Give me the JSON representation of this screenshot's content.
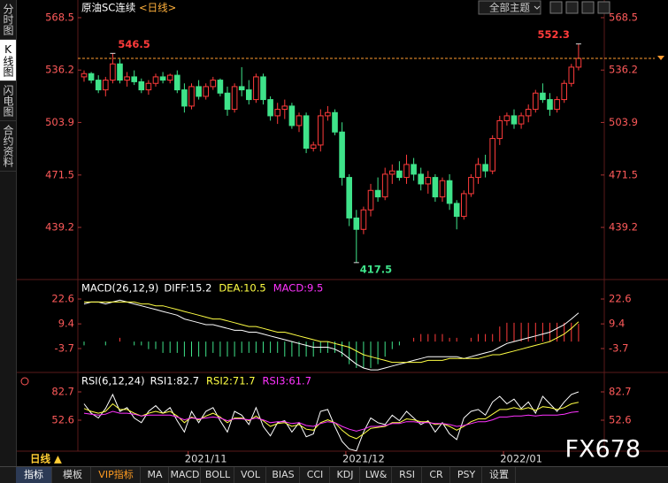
{
  "header": {
    "title": "原油SC连续",
    "period": "<日线>",
    "theme_button": "全部主题"
  },
  "sidebar": [
    "分时图",
    "K线图",
    "闪电图",
    "合约资料"
  ],
  "period_label": "日线 ▲",
  "toolbar": [
    "指标",
    "模板",
    "VIP指标",
    "MA",
    "MACD",
    "BOLL",
    "VOL",
    "BIAS",
    "CCI",
    "KDJ",
    "LW&",
    "RSI",
    "CR",
    "PSY",
    "设置"
  ],
  "watermark": "FX678",
  "chart_data": [
    {
      "type": "candlestick",
      "up_color": "#ff3b3b",
      "down_color": "#3fe38a",
      "ylim": [
        407.6,
        579.4
      ],
      "yticks": [
        439.2,
        471.5,
        503.9,
        536.2,
        568.5
      ],
      "ohlc": [
        [
          532,
          536,
          529,
          534
        ],
        [
          534,
          535,
          528,
          530
        ],
        [
          530,
          533,
          522,
          524
        ],
        [
          524,
          532,
          520,
          530
        ],
        [
          530,
          546.5,
          528,
          540
        ],
        [
          540,
          543,
          528,
          530
        ],
        [
          530,
          535,
          526,
          532
        ],
        [
          532,
          536,
          527,
          529
        ],
        [
          529,
          531,
          522,
          524
        ],
        [
          524,
          530,
          521,
          528
        ],
        [
          528,
          534,
          526,
          532
        ],
        [
          532,
          535,
          528,
          530
        ],
        [
          530,
          534,
          528,
          533
        ],
        [
          533,
          536,
          522,
          524
        ],
        [
          524,
          528,
          510,
          514
        ],
        [
          514,
          528,
          512,
          526
        ],
        [
          526,
          530,
          518,
          520
        ],
        [
          520,
          528,
          518,
          526
        ],
        [
          526,
          532,
          524,
          530
        ],
        [
          530,
          531,
          520,
          522
        ],
        [
          522,
          526,
          508,
          512
        ],
        [
          512,
          528,
          510,
          526
        ],
        [
          526,
          538,
          520,
          524
        ],
        [
          524,
          530,
          515,
          518
        ],
        [
          518,
          534,
          516,
          532
        ],
        [
          532,
          534,
          515,
          518
        ],
        [
          518,
          520,
          505,
          508
        ],
        [
          508,
          516,
          503,
          512
        ],
        [
          512,
          518,
          506,
          514
        ],
        [
          514,
          516,
          500,
          502
        ],
        [
          502,
          510,
          498,
          508
        ],
        [
          508,
          510,
          485,
          488
        ],
        [
          488,
          492,
          486,
          490
        ],
        [
          490,
          512,
          486,
          508
        ],
        [
          508,
          514,
          505,
          510
        ],
        [
          510,
          512,
          496,
          498
        ],
        [
          498,
          504,
          465,
          470
        ],
        [
          470,
          472,
          440,
          445
        ],
        [
          445,
          450,
          417.5,
          438
        ],
        [
          438,
          452,
          435,
          450
        ],
        [
          450,
          466,
          446,
          462
        ],
        [
          462,
          470,
          455,
          458
        ],
        [
          458,
          476,
          456,
          472
        ],
        [
          472,
          478,
          466,
          474
        ],
        [
          474,
          480,
          468,
          470
        ],
        [
          470,
          484,
          466,
          478
        ],
        [
          478,
          482,
          468,
          472
        ],
        [
          472,
          476,
          462,
          466
        ],
        [
          466,
          474,
          460,
          470
        ],
        [
          470,
          472,
          455,
          458
        ],
        [
          458,
          470,
          455,
          468
        ],
        [
          468,
          472,
          450,
          454
        ],
        [
          454,
          456,
          438,
          446
        ],
        [
          446,
          462,
          444,
          460
        ],
        [
          460,
          472,
          458,
          470
        ],
        [
          470,
          482,
          466,
          478
        ],
        [
          478,
          484,
          470,
          474
        ],
        [
          474,
          496,
          472,
          494
        ],
        [
          494,
          508,
          490,
          505
        ],
        [
          505,
          510,
          502,
          508
        ],
        [
          508,
          512,
          500,
          503
        ],
        [
          503,
          510,
          500,
          508
        ],
        [
          508,
          515,
          504,
          512
        ],
        [
          512,
          524,
          510,
          522
        ],
        [
          522,
          528,
          516,
          518
        ],
        [
          518,
          522,
          508,
          512
        ],
        [
          512,
          520,
          510,
          518
        ],
        [
          518,
          530,
          516,
          528
        ],
        [
          528,
          540,
          526,
          538
        ],
        [
          538,
          552.3,
          536,
          543.4
        ]
      ]
    },
    {
      "type": "macd",
      "title": "MACD(26,12,9)",
      "ylim": [
        -15.9,
        32.0
      ],
      "yticks": [
        -3.7,
        9.4,
        22.6
      ],
      "up_color": "#ff3b3b",
      "down_color": "#3fe38a",
      "hist_name": "MACD:9.5",
      "hist_label_color": "#ff33ff",
      "hist": [
        -2,
        0,
        0,
        -2,
        0,
        2,
        0,
        -2,
        -2,
        -4,
        -4,
        -6,
        -6,
        -6,
        -8,
        -8,
        -8,
        -8,
        -6,
        -8,
        -8,
        -8,
        -6,
        -6,
        -6,
        -6,
        -6,
        -6,
        -8,
        -8,
        -8,
        -8,
        -8,
        -6,
        -6,
        -6,
        -8,
        -12,
        -14,
        -14,
        -14,
        -12,
        -8,
        -4,
        -2,
        0,
        2,
        4,
        4,
        4,
        4,
        2,
        2,
        0,
        2,
        4,
        4,
        4,
        8,
        10,
        10,
        10,
        10,
        10,
        10,
        10,
        10,
        10,
        10,
        9.5
      ],
      "series": [
        {
          "name": "DIFF:15.2",
          "color": "#ffffff",
          "values": [
            20,
            21,
            21,
            20,
            21,
            22,
            21,
            20,
            19,
            18,
            17,
            16,
            15,
            14,
            12,
            11,
            10,
            9,
            9,
            8,
            7,
            6,
            6,
            5,
            5,
            4,
            3,
            2,
            1,
            0,
            -1,
            -2,
            -3,
            -3,
            -3,
            -4,
            -6,
            -9,
            -12,
            -14,
            -15,
            -15,
            -14,
            -13,
            -12,
            -11,
            -10,
            -9,
            -8,
            -8,
            -8,
            -8,
            -8,
            -9,
            -8,
            -7,
            -6,
            -5,
            -3,
            -1,
            0,
            1,
            2,
            3,
            4,
            5,
            7,
            9,
            12,
            15.2
          ]
        },
        {
          "name": "DEA:10.5",
          "color": "#ffff44",
          "values": [
            21,
            21,
            21,
            21,
            21,
            21,
            21,
            21,
            20,
            20,
            19,
            19,
            18,
            17,
            16,
            15,
            14,
            13,
            12,
            12,
            11,
            10,
            9,
            8,
            8,
            7,
            6,
            5,
            5,
            4,
            3,
            2,
            1,
            0,
            0,
            -1,
            -2,
            -3,
            -5,
            -7,
            -8,
            -9,
            -10,
            -11,
            -11,
            -11,
            -11,
            -11,
            -10,
            -10,
            -10,
            -9,
            -9,
            -9,
            -9,
            -9,
            -8,
            -7,
            -7,
            -6,
            -5,
            -4,
            -3,
            -2,
            -1,
            0,
            2,
            4,
            7,
            10.5
          ]
        }
      ]
    },
    {
      "type": "rsi",
      "title": "RSI(6,12,24)",
      "ylim": [
        19.7,
        101.5
      ],
      "yticks": [
        52.6,
        82.7
      ],
      "xticks": [
        {
          "value": 17,
          "label": "2021/11"
        },
        {
          "value": 39,
          "label": "2021/12"
        },
        {
          "value": 61,
          "label": "2022/01"
        }
      ],
      "series": [
        {
          "name": "RSI1:82.7",
          "color": "#ffffff",
          "values": [
            70,
            60,
            55,
            65,
            80,
            62,
            66,
            55,
            50,
            62,
            68,
            60,
            66,
            52,
            40,
            62,
            50,
            62,
            66,
            52,
            40,
            62,
            58,
            48,
            66,
            46,
            36,
            50,
            52,
            40,
            50,
            35,
            38,
            62,
            64,
            46,
            30,
            22,
            20,
            40,
            55,
            50,
            48,
            58,
            52,
            62,
            55,
            48,
            52,
            40,
            50,
            38,
            32,
            55,
            62,
            64,
            58,
            72,
            78,
            70,
            75,
            65,
            72,
            60,
            78,
            70,
            62,
            72,
            80,
            82.7
          ]
        },
        {
          "name": "RSI2:71.7",
          "color": "#ffff44",
          "values": [
            65,
            62,
            60,
            62,
            70,
            64,
            64,
            60,
            57,
            60,
            62,
            60,
            62,
            57,
            50,
            56,
            53,
            57,
            60,
            56,
            50,
            55,
            55,
            52,
            57,
            52,
            46,
            49,
            50,
            46,
            48,
            43,
            42,
            50,
            53,
            50,
            42,
            36,
            33,
            38,
            44,
            45,
            46,
            50,
            50,
            54,
            53,
            51,
            51,
            48,
            49,
            46,
            42,
            46,
            51,
            54,
            54,
            59,
            64,
            64,
            66,
            64,
            66,
            63,
            67,
            66,
            64,
            66,
            70,
            71.7
          ]
        },
        {
          "name": "RSI3:61.7",
          "color": "#ff33ff",
          "values": [
            60,
            59,
            58,
            59,
            62,
            60,
            60,
            59,
            57,
            58,
            58,
            58,
            58,
            56,
            53,
            55,
            54,
            55,
            56,
            55,
            52,
            54,
            54,
            53,
            55,
            53,
            50,
            51,
            51,
            49,
            50,
            47,
            46,
            49,
            51,
            50,
            46,
            43,
            41,
            43,
            46,
            46,
            47,
            49,
            49,
            51,
            51,
            50,
            50,
            49,
            49,
            48,
            46,
            47,
            49,
            51,
            51,
            53,
            56,
            56,
            57,
            57,
            58,
            57,
            58,
            58,
            58,
            59,
            61,
            61.7
          ]
        }
      ]
    }
  ]
}
